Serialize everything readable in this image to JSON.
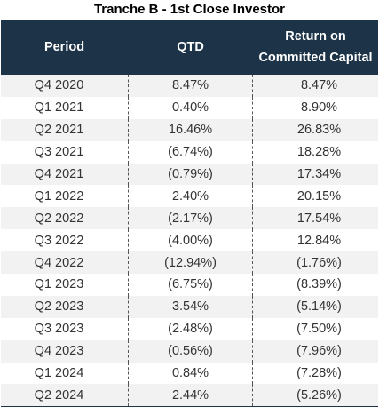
{
  "title": "Tranche B - 1st Close Investor",
  "columns": [
    "Period",
    "QTD",
    "Return on\nCommitted Capital"
  ],
  "rows": [
    [
      "Q4 2020",
      "8.47%",
      "8.47%"
    ],
    [
      "Q1 2021",
      "0.40%",
      "8.90%"
    ],
    [
      "Q2 2021",
      "16.46%",
      "26.83%"
    ],
    [
      "Q3 2021",
      "(6.74%)",
      "18.28%"
    ],
    [
      "Q4 2021",
      "(0.79%)",
      "17.34%"
    ],
    [
      "Q1 2022",
      "2.40%",
      "20.15%"
    ],
    [
      "Q2 2022",
      "(2.17%)",
      "17.54%"
    ],
    [
      "Q3 2022",
      "(4.00%)",
      "12.84%"
    ],
    [
      "Q4 2022",
      "(12.94%)",
      "(1.76%)"
    ],
    [
      "Q1 2023",
      "(6.75%)",
      "(8.39%)"
    ],
    [
      "Q2 2023",
      "3.54%",
      "(5.14%)"
    ],
    [
      "Q3 2023",
      "(2.48%)",
      "(7.50%)"
    ],
    [
      "Q4 2023",
      "(0.56%)",
      "(7.96%)"
    ],
    [
      "Q1 2024",
      "0.84%",
      "(7.28%)"
    ],
    [
      "Q2 2024",
      "2.44%",
      "(5.26%)"
    ]
  ],
  "colors": {
    "header_bg": "#1d3347",
    "stripe": "#f2f2f2"
  }
}
